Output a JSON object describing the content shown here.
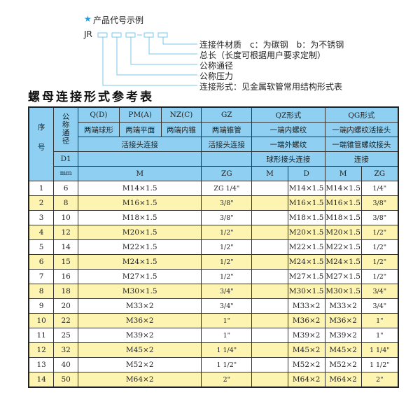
{
  "legend": {
    "heading": "产品代号示例",
    "code_prefix": "JR",
    "items": [
      "连接件材质　c：为碳钢　b：为不锈钢",
      "总长（长度可根据用户要求定制）",
      "公称通径",
      "公称压力",
      "连接形式：见金属软管常用结构形式表"
    ]
  },
  "title": "螺母连接形式参考表",
  "header": {
    "seq": "序号",
    "nominal": "公称通径",
    "qd": "Q(D)",
    "pma": "PM(A)",
    "nzc": "NZ(C)",
    "gz": "GZ",
    "qz": "QZ形式",
    "qg": "QG形式",
    "qd_desc": "两端球形",
    "pma_desc": "两端平面",
    "nzc_desc": "两端内锥",
    "gz_desc": "两端锥管",
    "qz_desc": "一端内螺纹",
    "qg_desc": "一端内螺纹活接头",
    "union": "活接头连接",
    "gz_union": "活接头连接",
    "qz_desc2": "一端外螺纹",
    "qg_desc2": "一端锥管螺纹接头",
    "d1": "D1",
    "qz_desc3": "球形接头连接",
    "qg_desc3": "连接",
    "mm": "mm",
    "m": "M",
    "zg": "ZG",
    "qz_m": "M",
    "qz_d": "D",
    "qg_m": "M",
    "qg_zg": "ZG"
  },
  "rows": [
    {
      "no": "1",
      "dn": "6",
      "m": "M14×1.5",
      "zg": "ZG 1/4\"",
      "qz_m": "",
      "qz_d": "M14×1.5",
      "qg_m": "M14×1.5",
      "qg_zg": "1/4\""
    },
    {
      "no": "2",
      "dn": "8",
      "m": "M16×1.5",
      "zg": "3/8\"",
      "qz_m": "",
      "qz_d": "M16×1.5",
      "qg_m": "M16×1.5",
      "qg_zg": "3/8\""
    },
    {
      "no": "3",
      "dn": "10",
      "m": "M18×1.5",
      "zg": "3/8\"",
      "qz_m": "",
      "qz_d": "M18×1.5",
      "qg_m": "M18×1.5",
      "qg_zg": "3/8\""
    },
    {
      "no": "4",
      "dn": "12",
      "m": "M20×1.5",
      "zg": "1/2\"",
      "qz_m": "",
      "qz_d": "M20×1.5",
      "qg_m": "M20×1.5",
      "qg_zg": "1/2\""
    },
    {
      "no": "5",
      "dn": "14",
      "m": "M22×1.5",
      "zg": "1/2\"",
      "qz_m": "",
      "qz_d": "M22×1.5",
      "qg_m": "M22×1.5",
      "qg_zg": "1/2\""
    },
    {
      "no": "6",
      "dn": "15",
      "m": "M24×1.5",
      "zg": "1/2\"",
      "qz_m": "",
      "qz_d": "M24×1.5",
      "qg_m": "M24×1.5",
      "qg_zg": "1/2\""
    },
    {
      "no": "7",
      "dn": "16",
      "m": "M27×1.5",
      "zg": "1/2\"",
      "qz_m": "",
      "qz_d": "M27×1.5",
      "qg_m": "M27×1.5",
      "qg_zg": "1/2\""
    },
    {
      "no": "8",
      "dn": "18",
      "m": "M30×1.5",
      "zg": "3/4\"",
      "qz_m": "",
      "qz_d": "M30×1.5",
      "qg_m": "M30×1.5",
      "qg_zg": "3/4\""
    },
    {
      "no": "9",
      "dn": "20",
      "m": "M33×2",
      "zg": "3/4\"",
      "qz_m": "",
      "qz_d": "M33×2",
      "qg_m": "M33×2",
      "qg_zg": "3/4\""
    },
    {
      "no": "10",
      "dn": "22",
      "m": "M36×2",
      "zg": "1\"",
      "qz_m": "",
      "qz_d": "M36×2",
      "qg_m": "M36×2",
      "qg_zg": "1\""
    },
    {
      "no": "11",
      "dn": "25",
      "m": "M39×2",
      "zg": "1\"",
      "qz_m": "",
      "qz_d": "M39×2",
      "qg_m": "M39×2",
      "qg_zg": "1\""
    },
    {
      "no": "12",
      "dn": "32",
      "m": "M45×2",
      "zg": "1 1/4\"",
      "qz_m": "",
      "qz_d": "M45×2",
      "qg_m": "M45×2",
      "qg_zg": "1 1/4\""
    },
    {
      "no": "13",
      "dn": "40",
      "m": "M52×2",
      "zg": "1 1/2\"",
      "qz_m": "",
      "qz_d": "M52×2",
      "qg_m": "M52×2",
      "qg_zg": "1 1/2\""
    },
    {
      "no": "14",
      "dn": "50",
      "m": "M64×2",
      "zg": "2\"",
      "qz_m": "",
      "qz_d": "M64×2",
      "qg_m": "M64×2",
      "qg_zg": "2\""
    }
  ],
  "colors": {
    "header": "#8fd0f2",
    "stripe": "#fdf4b2",
    "star": "#1aa0e0"
  }
}
